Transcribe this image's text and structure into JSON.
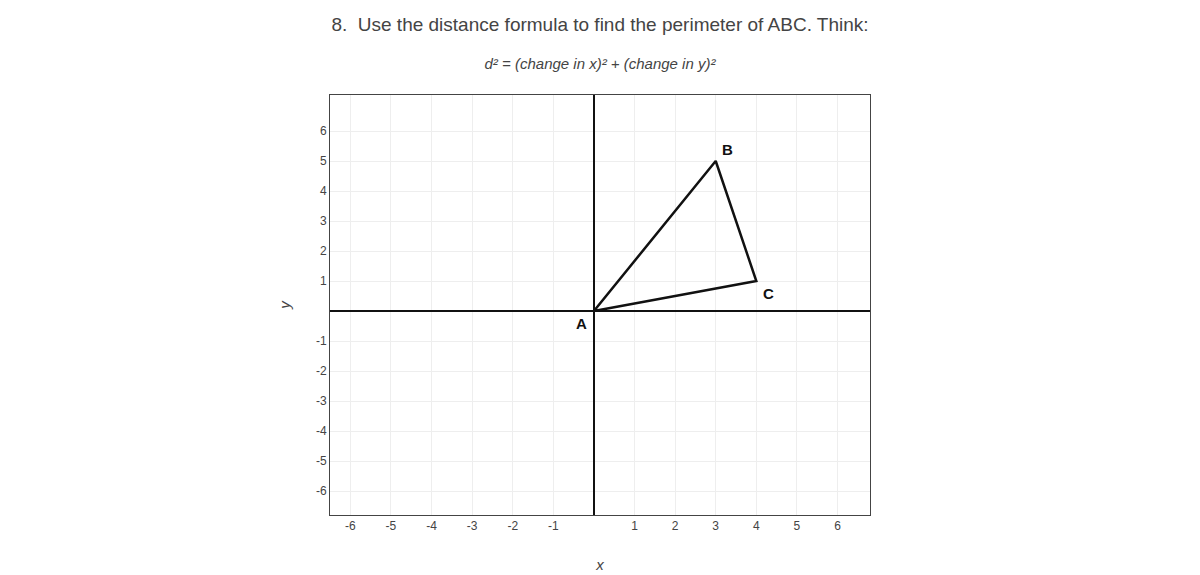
{
  "chart_data": {
    "type": "line",
    "title": "8.  Use the distance formula to find the perimeter of ABC. Think:",
    "subtitle": "d² = (change in x)² + (change in y)²",
    "x_label": "x",
    "y_label": "y",
    "x": [
      0,
      3,
      4,
      0
    ],
    "values": [
      0,
      5,
      1,
      0
    ],
    "color": "#111111",
    "xlim": [
      -6.5,
      6.8
    ],
    "ylim": [
      -6.8,
      7.2
    ],
    "xticks": [
      -6,
      -5,
      -4,
      -3,
      -2,
      -1,
      1,
      2,
      3,
      4,
      5,
      6
    ],
    "yticks": [
      -6,
      -5,
      -4,
      -3,
      -2,
      -1,
      1,
      2,
      3,
      4,
      5,
      6
    ],
    "grid": true,
    "annotations": [
      {
        "text": "A",
        "x": 0,
        "y": 0
      },
      {
        "text": "B",
        "x": 3,
        "y": 5
      },
      {
        "text": "C",
        "x": 4,
        "y": 1
      }
    ]
  }
}
